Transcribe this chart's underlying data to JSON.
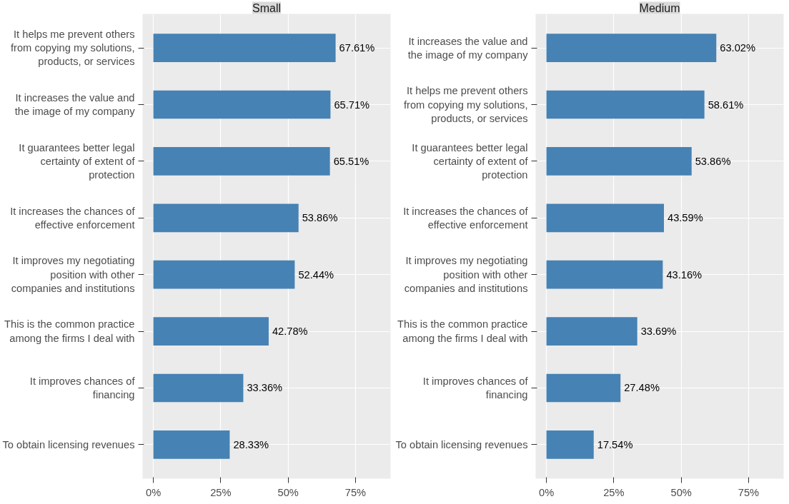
{
  "chart_data": [
    {
      "type": "bar",
      "orientation": "horizontal",
      "title": "Small",
      "categories": [
        "It helps me prevent others from copying my solutions, products, or services",
        "It increases the value and the image of my company",
        "It guarantees better legal certainty of extent of protection",
        "It increases the chances of effective enforcement",
        "It improves my negotiating position with other companies and institutions",
        "This is the common practice among the firms I deal with",
        "It improves chances of financing",
        "To obtain licensing revenues"
      ],
      "values": [
        67.61,
        65.71,
        65.51,
        53.86,
        52.44,
        42.78,
        33.36,
        28.33
      ],
      "value_labels": [
        "67.61%",
        "65.71%",
        "65.51%",
        "53.86%",
        "52.44%",
        "42.78%",
        "33.36%",
        "28.33%"
      ],
      "color": "#4682b4",
      "xlim": [
        -4,
        88
      ],
      "xticks": [
        {
          "value": 0,
          "label": "0%"
        },
        {
          "value": 25,
          "label": "25%"
        },
        {
          "value": 50,
          "label": "50%"
        },
        {
          "value": 75,
          "label": "75%"
        }
      ],
      "grid": true
    },
    {
      "type": "bar",
      "orientation": "horizontal",
      "title": "Medium",
      "categories": [
        "It increases the value and the image of my company",
        "It helps me prevent others from copying my solutions, products, or services",
        "It guarantees better legal certainty of extent of protection",
        "It increases the chances of effective enforcement",
        "It improves my negotiating position with other companies and institutions",
        "This is the common practice among the firms I deal with",
        "It improves chances of financing",
        "To obtain licensing revenues"
      ],
      "values": [
        63.02,
        58.61,
        53.86,
        43.59,
        43.16,
        33.69,
        27.48,
        17.54
      ],
      "value_labels": [
        "63.02%",
        "58.61%",
        "53.86%",
        "43.59%",
        "43.16%",
        "33.69%",
        "27.48%",
        "17.54%"
      ],
      "color": "#4682b4",
      "xlim": [
        -4,
        88
      ],
      "xticks": [
        {
          "value": 0,
          "label": "0%"
        },
        {
          "value": 25,
          "label": "25%"
        },
        {
          "value": 50,
          "label": "50%"
        },
        {
          "value": 75,
          "label": "75%"
        }
      ],
      "grid": true
    }
  ]
}
